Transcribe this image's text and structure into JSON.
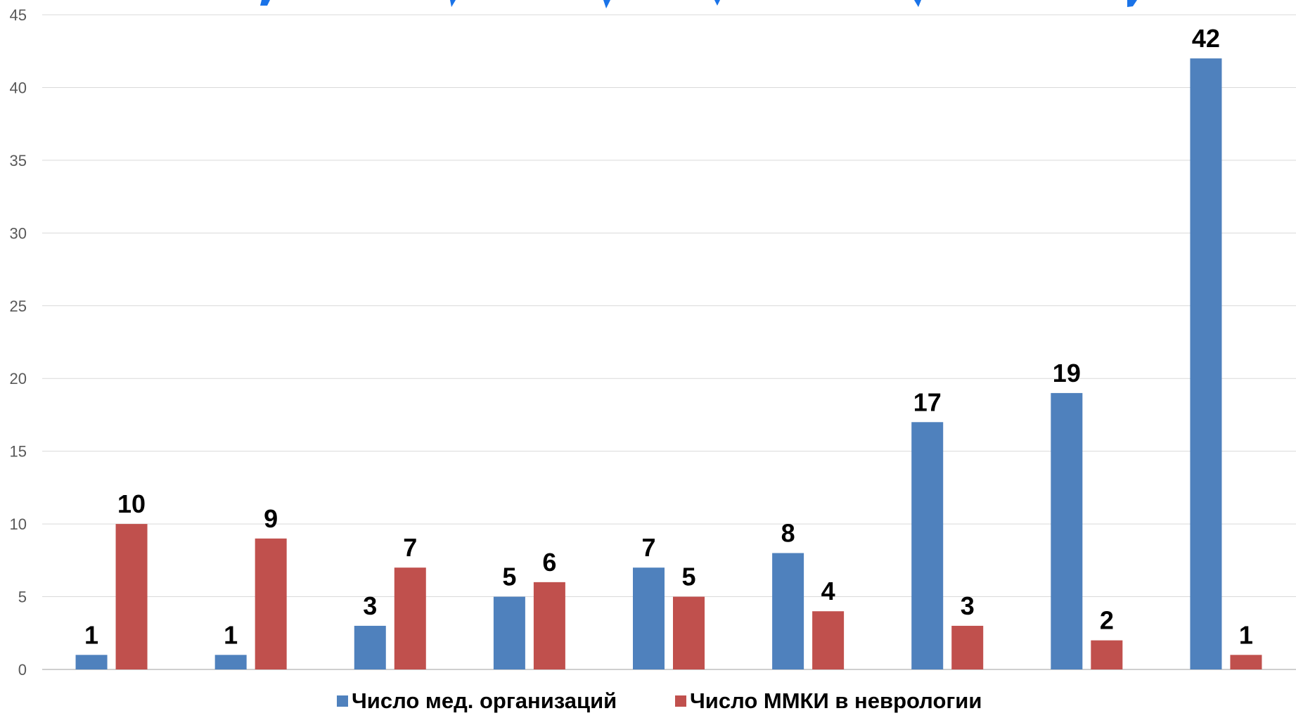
{
  "chart_data": {
    "type": "bar",
    "title": "",
    "xlabel": "",
    "ylabel": "",
    "ylim": [
      0,
      45
    ],
    "yticks": [
      0,
      5,
      10,
      15,
      20,
      25,
      30,
      35,
      40,
      45
    ],
    "grid": true,
    "legend_position": "bottom",
    "group_count": 9,
    "series": [
      {
        "name": "Число мед. организаций",
        "color": "#4F81BD",
        "values": [
          1,
          1,
          3,
          5,
          7,
          8,
          17,
          19,
          42
        ]
      },
      {
        "name": "Число ММКИ в неврологии",
        "color": "#C0504D",
        "values": [
          10,
          9,
          7,
          6,
          5,
          4,
          3,
          2,
          1
        ]
      }
    ]
  }
}
